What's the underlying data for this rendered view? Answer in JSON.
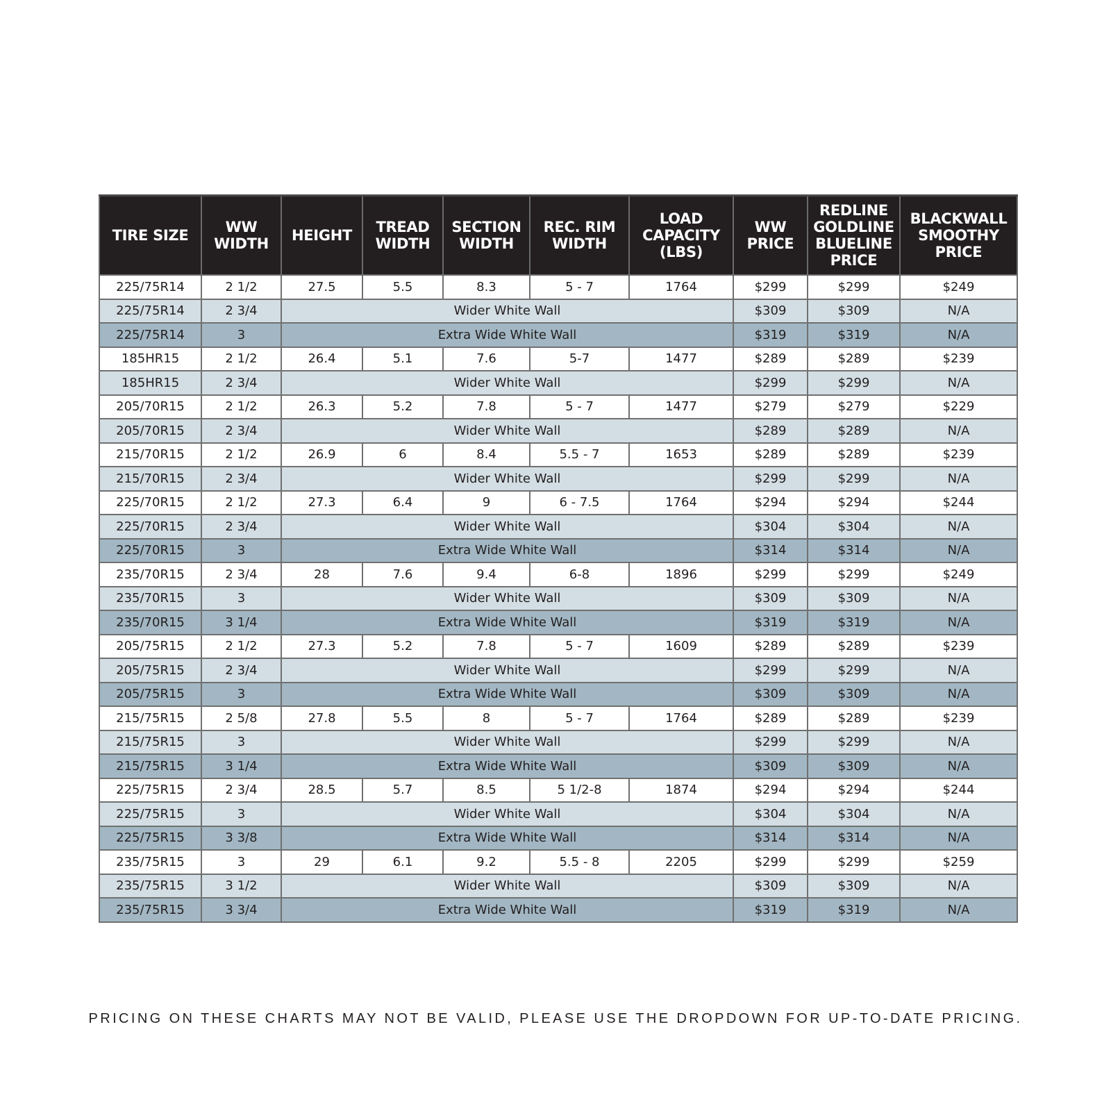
{
  "colors": {
    "header": "#231f20",
    "plain": "#ffffff",
    "wider": "#d3dee4",
    "extra": "#a2b7c3"
  },
  "headers": [
    "TIRE SIZE",
    "WW WIDTH",
    "HEIGHT",
    "TREAD WIDTH",
    "SECTION WIDTH",
    "REC. RIM WIDTH",
    "LOAD CAPACITY (LBS)",
    "WW PRICE",
    "REDLINE GOLDLINE BLUELINE PRICE",
    "BLACKWALL SMOOTHY PRICE"
  ],
  "rows": [
    {
      "size": "225/75R14",
      "ww": "2 1/2",
      "specs": [
        "27.5",
        "5.5",
        "8.3",
        "5 - 7",
        "1764"
      ],
      "prices": [
        "$299",
        "$299",
        "$249"
      ]
    },
    {
      "size": "225/75R14",
      "ww": "2 3/4",
      "note": "Wider White Wall",
      "prices": [
        "$309",
        "$309",
        "N/A"
      ]
    },
    {
      "size": "225/75R14",
      "ww": "3",
      "note": "Extra Wide White Wall",
      "prices": [
        "$319",
        "$319",
        "N/A"
      ]
    },
    {
      "size": "185HR15",
      "ww": "2 1/2",
      "specs": [
        "26.4",
        "5.1",
        "7.6",
        "5-7",
        "1477"
      ],
      "prices": [
        "$289",
        "$289",
        "$239"
      ]
    },
    {
      "size": "185HR15",
      "ww": "2 3/4",
      "note": "Wider White Wall",
      "prices": [
        "$299",
        "$299",
        "N/A"
      ]
    },
    {
      "size": "205/70R15",
      "ww": "2 1/2",
      "specs": [
        "26.3",
        "5.2",
        "7.8",
        "5 - 7",
        "1477"
      ],
      "prices": [
        "$279",
        "$279",
        "$229"
      ]
    },
    {
      "size": "205/70R15",
      "ww": "2 3/4",
      "note": "Wider White Wall",
      "prices": [
        "$289",
        "$289",
        "N/A"
      ]
    },
    {
      "size": "215/70R15",
      "ww": "2 1/2",
      "specs": [
        "26.9",
        "6",
        "8.4",
        "5.5 - 7",
        "1653"
      ],
      "prices": [
        "$289",
        "$289",
        "$239"
      ]
    },
    {
      "size": "215/70R15",
      "ww": "2 3/4",
      "note": "Wider White Wall",
      "prices": [
        "$299",
        "$299",
        "N/A"
      ]
    },
    {
      "size": "225/70R15",
      "ww": "2 1/2",
      "specs": [
        "27.3",
        "6.4",
        "9",
        "6 - 7.5",
        "1764"
      ],
      "prices": [
        "$294",
        "$294",
        "$244"
      ]
    },
    {
      "size": "225/70R15",
      "ww": "2 3/4",
      "note": "Wider White Wall",
      "prices": [
        "$304",
        "$304",
        "N/A"
      ]
    },
    {
      "size": "225/70R15",
      "ww": "3",
      "note": "Extra Wide White Wall",
      "prices": [
        "$314",
        "$314",
        "N/A"
      ]
    },
    {
      "size": "235/70R15",
      "ww": "2 3/4",
      "specs": [
        "28",
        "7.6",
        "9.4",
        "6-8",
        "1896"
      ],
      "prices": [
        "$299",
        "$299",
        "$249"
      ]
    },
    {
      "size": "235/70R15",
      "ww": "3",
      "note": "Wider White Wall",
      "prices": [
        "$309",
        "$309",
        "N/A"
      ]
    },
    {
      "size": "235/70R15",
      "ww": "3 1/4",
      "note": "Extra Wide White Wall",
      "prices": [
        "$319",
        "$319",
        "N/A"
      ]
    },
    {
      "size": "205/75R15",
      "ww": "2 1/2",
      "specs": [
        "27.3",
        "5.2",
        "7.8",
        "5 - 7",
        "1609"
      ],
      "prices": [
        "$289",
        "$289",
        "$239"
      ]
    },
    {
      "size": "205/75R15",
      "ww": "2 3/4",
      "note": "Wider White Wall",
      "prices": [
        "$299",
        "$299",
        "N/A"
      ]
    },
    {
      "size": "205/75R15",
      "ww": "3",
      "note": "Extra Wide White Wall",
      "prices": [
        "$309",
        "$309",
        "N/A"
      ]
    },
    {
      "size": "215/75R15",
      "ww": "2 5/8",
      "specs": [
        "27.8",
        "5.5",
        "8",
        "5 - 7",
        "1764"
      ],
      "prices": [
        "$289",
        "$289",
        "$239"
      ]
    },
    {
      "size": "215/75R15",
      "ww": "3",
      "note": "Wider White Wall",
      "prices": [
        "$299",
        "$299",
        "N/A"
      ]
    },
    {
      "size": "215/75R15",
      "ww": "3 1/4",
      "note": "Extra Wide White Wall",
      "prices": [
        "$309",
        "$309",
        "N/A"
      ]
    },
    {
      "size": "225/75R15",
      "ww": "2 3/4",
      "specs": [
        "28.5",
        "5.7",
        "8.5",
        "5 1/2-8",
        "1874"
      ],
      "prices": [
        "$294",
        "$294",
        "$244"
      ]
    },
    {
      "size": "225/75R15",
      "ww": "3",
      "note": "Wider White Wall",
      "prices": [
        "$304",
        "$304",
        "N/A"
      ]
    },
    {
      "size": "225/75R15",
      "ww": "3 3/8",
      "note": "Extra Wide White Wall",
      "prices": [
        "$314",
        "$314",
        "N/A"
      ]
    },
    {
      "size": "235/75R15",
      "ww": "3",
      "specs": [
        "29",
        "6.1",
        "9.2",
        "5.5 - 8",
        "2205"
      ],
      "prices": [
        "$299",
        "$299",
        "$259"
      ]
    },
    {
      "size": "235/75R15",
      "ww": "3 1/2",
      "note": "Wider White Wall",
      "prices": [
        "$309",
        "$309",
        "N/A"
      ]
    },
    {
      "size": "235/75R15",
      "ww": "3 3/4",
      "note": "Extra Wide White Wall",
      "prices": [
        "$319",
        "$319",
        "N/A"
      ]
    }
  ],
  "footer": "PRICING ON THESE CHARTS MAY NOT BE VALID, PLEASE USE THE DROPDOWN FOR UP-TO-DATE PRICING."
}
